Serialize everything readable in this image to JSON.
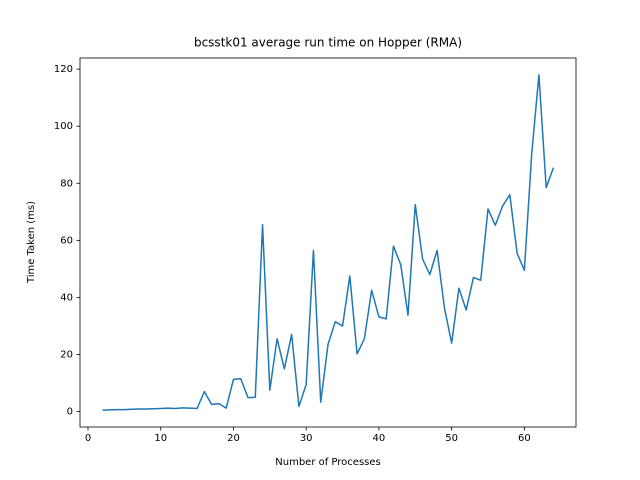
{
  "chart_data": {
    "type": "line",
    "title": "bcsstk01 average run time on Hopper (RMA)",
    "xlabel": "Number of Processes",
    "ylabel": "Time Taken (ms)",
    "x": [
      2,
      3,
      4,
      5,
      6,
      7,
      8,
      9,
      10,
      11,
      12,
      13,
      14,
      15,
      16,
      17,
      18,
      19,
      20,
      21,
      22,
      23,
      24,
      25,
      26,
      27,
      28,
      29,
      30,
      31,
      32,
      33,
      34,
      35,
      36,
      37,
      38,
      39,
      40,
      41,
      42,
      43,
      44,
      45,
      46,
      47,
      48,
      49,
      50,
      51,
      52,
      53,
      54,
      55,
      56,
      57,
      58,
      59,
      60,
      61,
      62,
      63,
      64
    ],
    "values": [
      0.5,
      0.6,
      0.7,
      0.7,
      0.8,
      0.9,
      0.9,
      1.0,
      1.1,
      1.2,
      1.1,
      1.3,
      1.2,
      1.1,
      7.0,
      2.5,
      2.8,
      1.2,
      11.3,
      11.5,
      4.9,
      5.0,
      65.5,
      7.5,
      25.5,
      15,
      27,
      1.8,
      9.5,
      56.5,
      3.3,
      23.5,
      31.5,
      30,
      47.5,
      20.2,
      25.5,
      42.5,
      33.2,
      32.5,
      58,
      51.5,
      33.8,
      72.5,
      53.5,
      48,
      56.5,
      36.5,
      24,
      43.2,
      35.6,
      47,
      46,
      71,
      65.3,
      72,
      76,
      55.5,
      49.5,
      90,
      118,
      78.5,
      85.5
    ],
    "color": "#1f77b4",
    "xlim": [
      -1.1,
      67.1
    ],
    "ylim": [
      -5.4,
      123.9
    ],
    "xticks": [
      0,
      10,
      20,
      30,
      40,
      50,
      60
    ],
    "yticks": [
      0,
      20,
      40,
      60,
      80,
      100,
      120
    ],
    "grid": false
  }
}
